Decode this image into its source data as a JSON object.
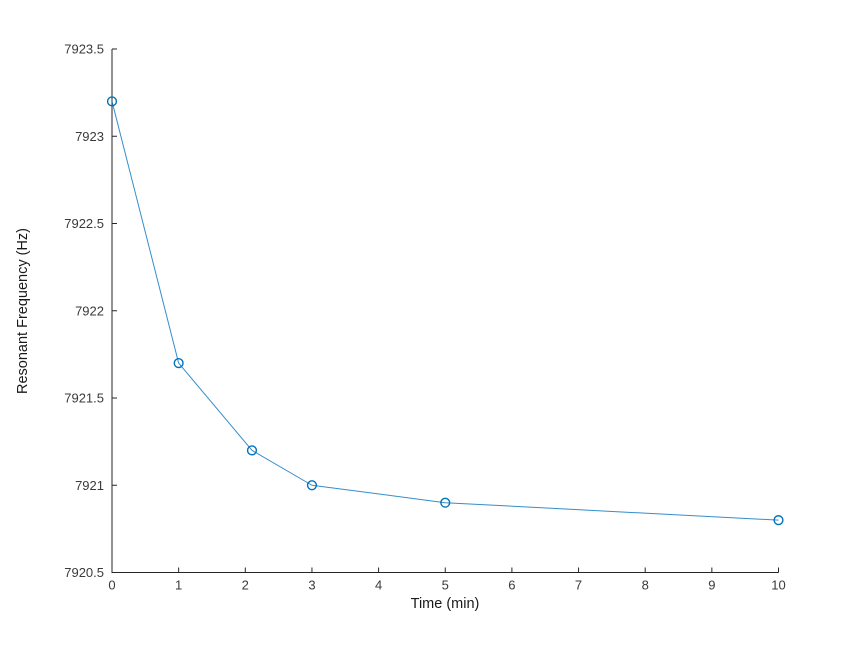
{
  "figure": {
    "background": "#ffffff"
  },
  "chart_data": {
    "type": "line",
    "title": "",
    "xlabel": "Time (min)",
    "ylabel": "Resonant Frequency (Hz)",
    "x": [
      0,
      1,
      2.1,
      3,
      5,
      10
    ],
    "y": [
      7923.2,
      7921.7,
      7921.2,
      7921.0,
      7920.9,
      7920.8
    ],
    "series_name": "Resonant Frequency",
    "xlim": [
      0,
      10
    ],
    "ylim": [
      7920.5,
      7923.5
    ],
    "xticks": [
      0,
      1,
      2,
      3,
      4,
      5,
      6,
      7,
      8,
      9,
      10
    ],
    "xtick_labels": [
      "0",
      "1",
      "2",
      "3",
      "4",
      "5",
      "6",
      "7",
      "8",
      "9",
      "10"
    ],
    "yticks": [
      7920.5,
      7921,
      7921.5,
      7922,
      7922.5,
      7923,
      7923.5
    ],
    "ytick_labels": [
      "7920.5",
      "7921",
      "7921.5",
      "7922",
      "7922.5",
      "7923",
      "7923.5"
    ],
    "line_color": "#0072BD",
    "marker": "circle-open",
    "axis_color": "#262626",
    "grid": false,
    "legend": "none"
  }
}
